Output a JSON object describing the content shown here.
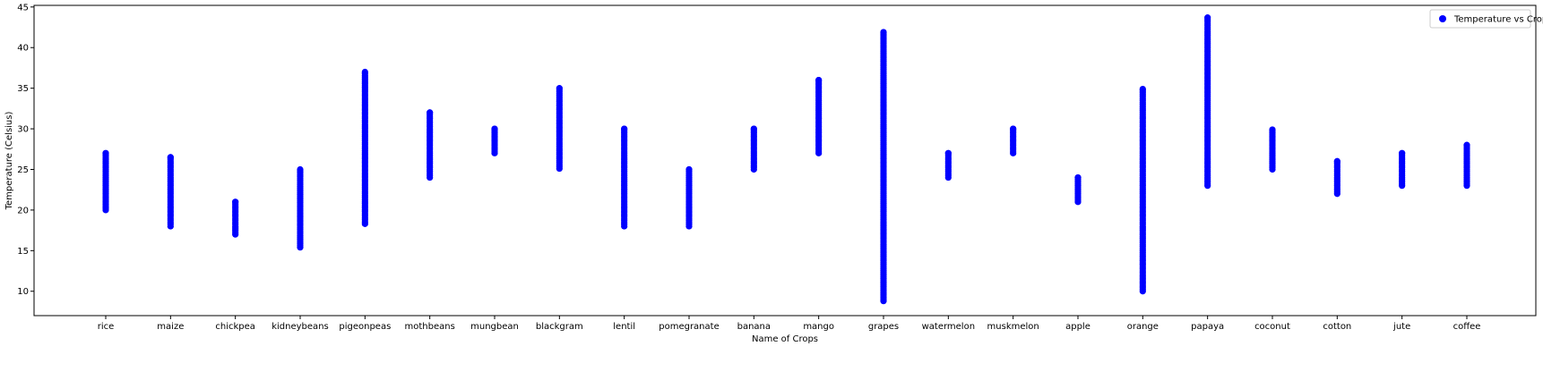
{
  "chart_data": {
    "type": "scatter",
    "title": "",
    "xlabel": "Name of Crops",
    "ylabel": "Temperature (Celsius)",
    "ylim": [
      7,
      45.2
    ],
    "yticks": [
      10,
      15,
      20,
      25,
      30,
      35,
      40,
      45
    ],
    "grid": false,
    "legend_position": "top-right",
    "marker_color": "#0000ff",
    "categories": [
      "rice",
      "maize",
      "chickpea",
      "kidneybeans",
      "pigeonpeas",
      "mothbeans",
      "mungbean",
      "blackgram",
      "lentil",
      "pomegranate",
      "banana",
      "mango",
      "grapes",
      "watermelon",
      "muskmelon",
      "apple",
      "orange",
      "papaya",
      "coconut",
      "cotton",
      "jute",
      "coffee"
    ],
    "series": [
      {
        "name": "Temperature vs Crop",
        "ranges": [
          {
            "crop": "rice",
            "min": 20.0,
            "max": 27.0
          },
          {
            "crop": "maize",
            "min": 18.0,
            "max": 26.5
          },
          {
            "crop": "chickpea",
            "min": 17.0,
            "max": 21.0
          },
          {
            "crop": "kidneybeans",
            "min": 15.4,
            "max": 25.0
          },
          {
            "crop": "pigeonpeas",
            "min": 18.3,
            "max": 37.0
          },
          {
            "crop": "mothbeans",
            "min": 24.0,
            "max": 32.0
          },
          {
            "crop": "mungbean",
            "min": 27.0,
            "max": 30.0
          },
          {
            "crop": "blackgram",
            "min": 25.1,
            "max": 35.0
          },
          {
            "crop": "lentil",
            "min": 18.0,
            "max": 30.0
          },
          {
            "crop": "pomegranate",
            "min": 18.0,
            "max": 25.0
          },
          {
            "crop": "banana",
            "min": 25.0,
            "max": 30.0
          },
          {
            "crop": "mango",
            "min": 27.0,
            "max": 36.0
          },
          {
            "crop": "grapes",
            "min": 8.8,
            "max": 41.9
          },
          {
            "crop": "watermelon",
            "min": 24.0,
            "max": 27.0
          },
          {
            "crop": "muskmelon",
            "min": 27.0,
            "max": 30.0
          },
          {
            "crop": "apple",
            "min": 21.0,
            "max": 24.0
          },
          {
            "crop": "orange",
            "min": 10.0,
            "max": 34.9
          },
          {
            "crop": "papaya",
            "min": 23.0,
            "max": 43.7
          },
          {
            "crop": "coconut",
            "min": 25.0,
            "max": 29.9
          },
          {
            "crop": "cotton",
            "min": 22.0,
            "max": 26.0
          },
          {
            "crop": "jute",
            "min": 23.0,
            "max": 27.0
          },
          {
            "crop": "coffee",
            "min": 23.0,
            "max": 28.0
          }
        ]
      }
    ]
  }
}
